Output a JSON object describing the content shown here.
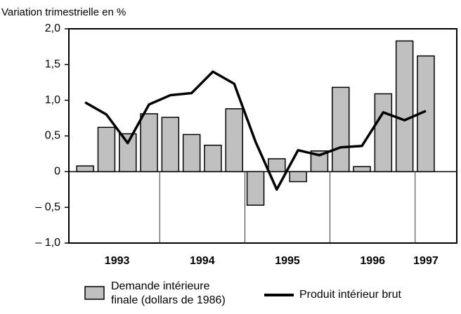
{
  "chart_data": {
    "type": "bar_line",
    "y_axis_label": "Variation trimestrielle en %",
    "categories": [
      null,
      null,
      null,
      null,
      null,
      null,
      null,
      null,
      null,
      null,
      null,
      null,
      null,
      null,
      null,
      null,
      null
    ],
    "x_groups": [
      {
        "label": "1993",
        "count": 4
      },
      {
        "label": "1994",
        "count": 4
      },
      {
        "label": "1995",
        "count": 4
      },
      {
        "label": "1996",
        "count": 4
      },
      {
        "label": "1997",
        "count": 1
      }
    ],
    "series": [
      {
        "name": "Demande intérieure\nfinale (dollars de 1986)",
        "type": "bar",
        "color": "#c0c0c0",
        "values": [
          0.08,
          0.62,
          0.53,
          0.81,
          0.76,
          0.52,
          0.37,
          0.88,
          -0.47,
          0.18,
          -0.14,
          0.29,
          1.18,
          0.07,
          1.09,
          1.83,
          1.62
        ]
      },
      {
        "name": "Produit intérieur brut",
        "type": "line",
        "color": "#000000",
        "values": [
          0.97,
          0.8,
          0.4,
          0.94,
          1.07,
          1.1,
          1.4,
          1.23,
          0.42,
          -0.25,
          0.3,
          0.23,
          0.34,
          0.36,
          0.83,
          0.72,
          0.85
        ]
      }
    ],
    "ylim": [
      -1.0,
      2.0
    ],
    "yticks": [
      {
        "value": -1.0,
        "label": "– 1,0"
      },
      {
        "value": -0.5,
        "label": "– 0,5"
      },
      0,
      {
        "value": 0.5,
        "label": "0,5"
      },
      {
        "value": 1.0,
        "label": "1,0"
      },
      {
        "value": 1.5,
        "label": "1,5"
      },
      {
        "value": 2.0,
        "label": "2,0"
      }
    ]
  }
}
